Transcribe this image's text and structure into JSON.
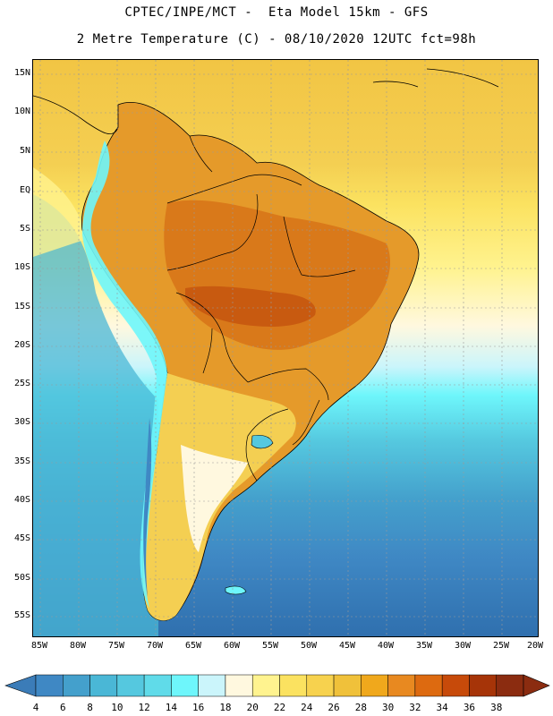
{
  "title_line1": "CPTEC/INPE/MCT -  Eta Model 15km - GFS",
  "title_line2": "2 Metre Temperature (C) - 08/10/2020 12UTC fct=98h",
  "lat_labels": [
    "15N",
    "10N",
    "5N",
    "EQ",
    "5S",
    "10S",
    "15S",
    "20S",
    "25S",
    "30S",
    "35S",
    "40S",
    "45S",
    "50S",
    "55S"
  ],
  "lon_labels": [
    "85W",
    "80W",
    "75W",
    "70W",
    "65W",
    "60W",
    "55W",
    "50W",
    "45W",
    "40W",
    "35W",
    "30W",
    "25W",
    "20W"
  ],
  "colorbar": {
    "labels": [
      "4",
      "6",
      "8",
      "10",
      "12",
      "14",
      "16",
      "18",
      "20",
      "22",
      "24",
      "26",
      "28",
      "30",
      "32",
      "34",
      "36",
      "38"
    ],
    "colors": [
      "#3b7cb8",
      "#3f88c4",
      "#44a0cc",
      "#4ab7d6",
      "#55c8df",
      "#60dbe9",
      "#6ef6fb",
      "#cbf5fb",
      "#fff8df",
      "#fff38f",
      "#fbe260",
      "#f7d24e",
      "#f0c13a",
      "#f0a81c",
      "#e88920",
      "#dd6a10",
      "#c74a0a",
      "#a63408",
      "#8b2c10"
    ]
  },
  "colors": {
    "ocean_south_deep": "#2f6fae",
    "ocean_tropical": "#f4cf52",
    "land_hot": "#e0861e",
    "land_andes": "#6ef6fb",
    "grid": "#9a9a9a"
  }
}
